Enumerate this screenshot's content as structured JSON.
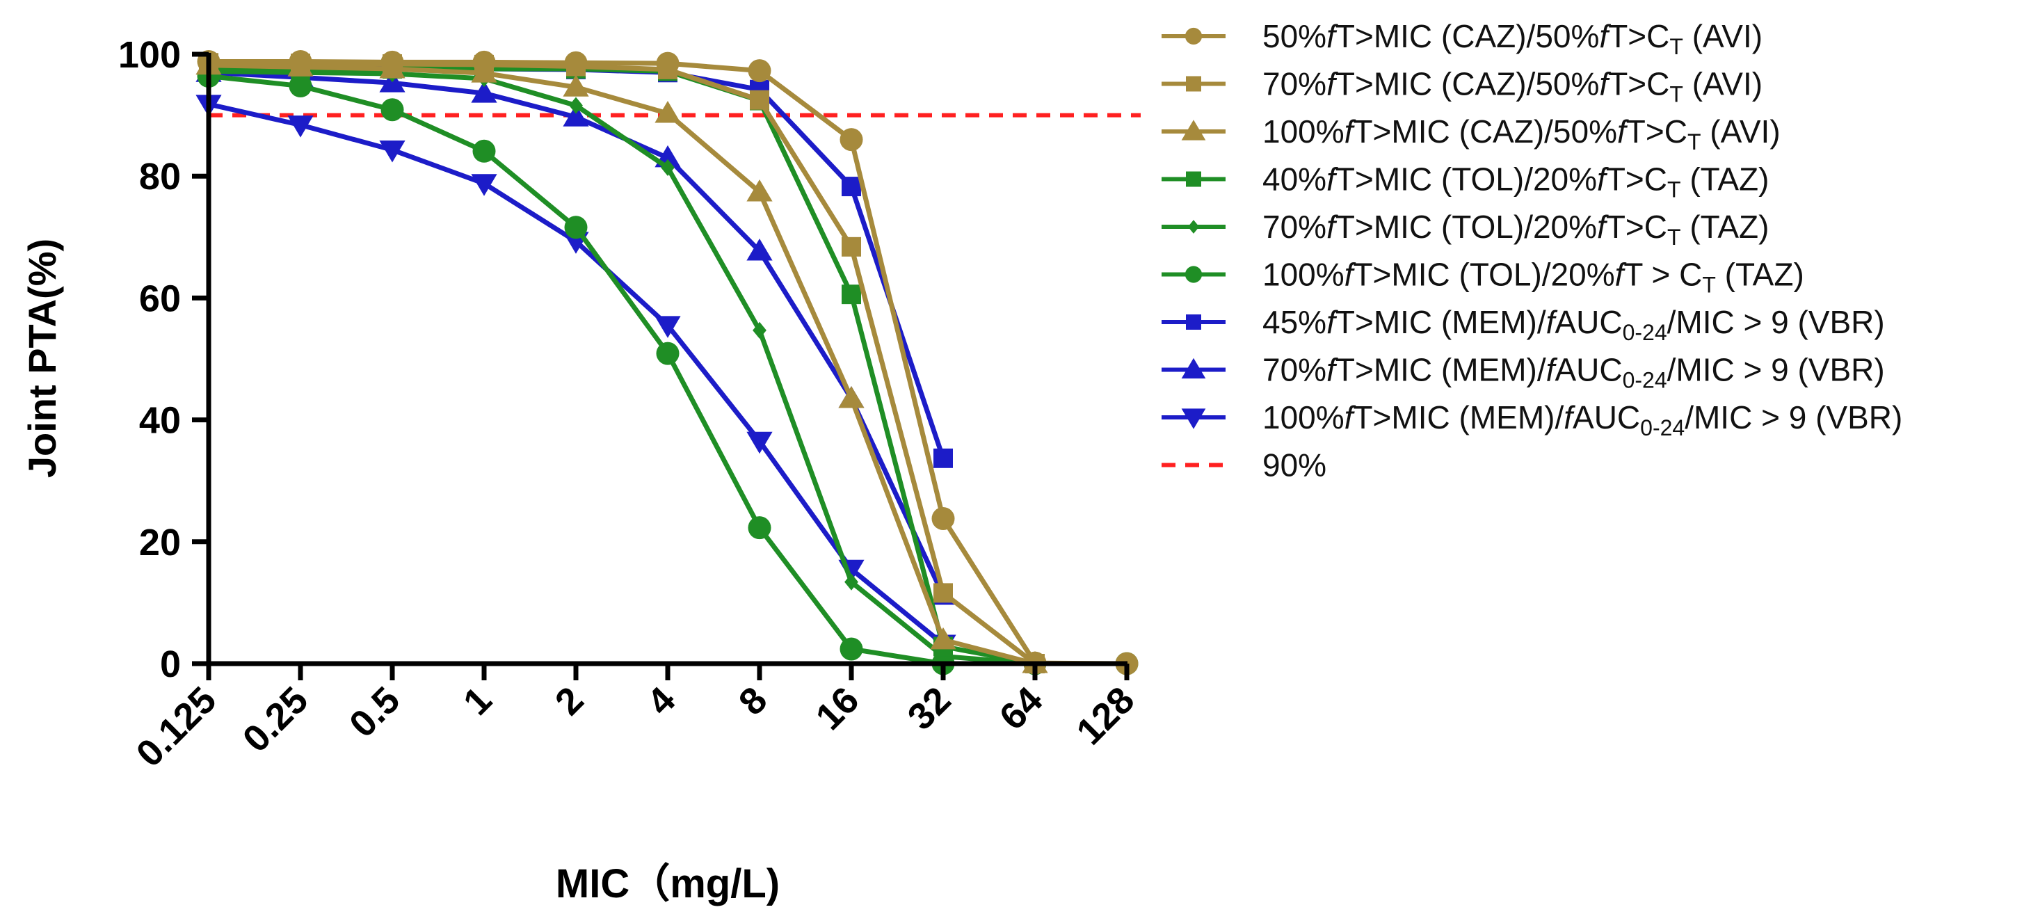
{
  "chart_data": {
    "type": "line",
    "xlabel": "MIC（mg/L)",
    "ylabel": "Joint PTA(%)",
    "ylim": [
      0,
      100
    ],
    "yticks": [
      0,
      20,
      40,
      60,
      80,
      100
    ],
    "grid": false,
    "legend_position": "right",
    "categories": [
      "0.125",
      "0.25",
      "0.5",
      "1",
      "2",
      "4",
      "8",
      "16",
      "32",
      "64",
      "128"
    ],
    "reference_line": {
      "name": "90%",
      "value": 90,
      "color": "#ff2020",
      "style": "dashed"
    },
    "series": [
      {
        "name": "50%fT>MIC (CAZ)/50%fT>CT (AVI)",
        "legend_parts": [
          {
            "t": "50%"
          },
          {
            "t": "f",
            "s": "i"
          },
          {
            "t": "T>MIC (CAZ)/50%"
          },
          {
            "t": "f",
            "s": "i"
          },
          {
            "t": "T>C"
          },
          {
            "t": "T",
            "s": "sub"
          },
          {
            "t": " (AVI)"
          }
        ],
        "color": "#a68a3c",
        "marker": "circle",
        "values": [
          98.8,
          98.8,
          98.7,
          98.7,
          98.6,
          98.5,
          97.3,
          86.0,
          23.8,
          0.1,
          0.0
        ]
      },
      {
        "name": "70%fT>MIC (CAZ)/50%fT>CT (AVI)",
        "legend_parts": [
          {
            "t": "70%"
          },
          {
            "t": "f",
            "s": "i"
          },
          {
            "t": "T>MIC (CAZ)/50%"
          },
          {
            "t": "f",
            "s": "i"
          },
          {
            "t": "T>C"
          },
          {
            "t": "T",
            "s": "sub"
          },
          {
            "t": " (AVI)"
          }
        ],
        "color": "#a68a3c",
        "marker": "square",
        "values": [
          98.6,
          98.5,
          98.4,
          98.3,
          98.0,
          97.5,
          92.5,
          68.4,
          11.6,
          0.0,
          null
        ]
      },
      {
        "name": "100%fT>MIC (CAZ)/50%fT>CT (AVI)",
        "legend_parts": [
          {
            "t": "100%"
          },
          {
            "t": "f",
            "s": "i"
          },
          {
            "t": "T>MIC (CAZ)/50%"
          },
          {
            "t": "f",
            "s": "i"
          },
          {
            "t": "T>C"
          },
          {
            "t": "T",
            "s": "sub"
          },
          {
            "t": " (AVI)"
          }
        ],
        "color": "#a68a3c",
        "marker": "triangle-up",
        "values": [
          98.2,
          97.9,
          97.6,
          96.9,
          94.6,
          90.3,
          77.4,
          43.5,
          3.9,
          0.0,
          null
        ]
      },
      {
        "name": "40%fT>MIC (TOL)/20%fT>CT (TAZ)",
        "legend_parts": [
          {
            "t": "40%"
          },
          {
            "t": "f",
            "s": "i"
          },
          {
            "t": "T>MIC (TOL)/20%"
          },
          {
            "t": "f",
            "s": "i"
          },
          {
            "t": "T>C"
          },
          {
            "t": "T",
            "s": "sub"
          },
          {
            "t": " (TAZ)"
          }
        ],
        "color": "#1f8e25",
        "marker": "square",
        "values": [
          97.6,
          97.6,
          97.6,
          97.6,
          97.6,
          97.2,
          92.4,
          60.6,
          2.8,
          0.0,
          null
        ]
      },
      {
        "name": "70%fT>MIC (TOL)/20%fT>CT (TAZ)",
        "legend_parts": [
          {
            "t": "70%"
          },
          {
            "t": "f",
            "s": "i"
          },
          {
            "t": "T>MIC (TOL)/20%"
          },
          {
            "t": "f",
            "s": "i"
          },
          {
            "t": "T>C"
          },
          {
            "t": "T",
            "s": "sub"
          },
          {
            "t": " (TAZ)"
          }
        ],
        "color": "#1f8e25",
        "marker": "diamond",
        "values": [
          97.2,
          97.0,
          96.8,
          96.0,
          91.6,
          81.4,
          54.7,
          13.4,
          1.2,
          0.0,
          null
        ]
      },
      {
        "name": "100%fT > MIC (TOL)/20%fT > CT (TAZ)",
        "legend_parts": [
          {
            "t": "100%"
          },
          {
            "t": "f",
            "s": "i"
          },
          {
            "t": "T>MIC (TOL)/20%"
          },
          {
            "t": "f",
            "s": "i"
          },
          {
            "t": "T > C"
          },
          {
            "t": "T",
            "s": "sub"
          },
          {
            "t": " (TAZ)"
          }
        ],
        "color": "#1f8e25",
        "marker": "circle",
        "values": [
          96.4,
          94.8,
          90.9,
          84.1,
          71.6,
          50.9,
          22.3,
          2.4,
          0.0,
          0.0,
          0.0
        ]
      },
      {
        "name": "45%fT>MIC (MEM)/fAUC0-24/MIC > 9 (VBR)",
        "legend_parts": [
          {
            "t": "45%"
          },
          {
            "t": "f",
            "s": "i"
          },
          {
            "t": "T>MIC (MEM)/"
          },
          {
            "t": "f",
            "s": "i"
          },
          {
            "t": "AUC"
          },
          {
            "t": "0-24",
            "s": "sub"
          },
          {
            "t": "/MIC > 9 (VBR)"
          }
        ],
        "color": "#1c1cc8",
        "marker": "square",
        "values": [
          97.9,
          97.8,
          97.7,
          97.6,
          97.5,
          97.0,
          94.2,
          78.3,
          33.7,
          null,
          null
        ]
      },
      {
        "name": "70%fT>MIC (MEM)/fAUC0-24/MIC > 9 (VBR)",
        "legend_parts": [
          {
            "t": "70%"
          },
          {
            "t": "f",
            "s": "i"
          },
          {
            "t": "T>MIC (MEM)/"
          },
          {
            "t": "f",
            "s": "i"
          },
          {
            "t": "AUC"
          },
          {
            "t": "0-24",
            "s": "sub"
          },
          {
            "t": "/MIC > 9 (VBR)"
          }
        ],
        "color": "#1c1cc8",
        "marker": "triangle-up",
        "values": [
          97.0,
          96.2,
          95.3,
          93.6,
          89.7,
          83.0,
          67.7,
          43.5,
          11.2,
          null,
          null
        ]
      },
      {
        "name": "100%fT>MIC (MEM)/fAUC0-24/MIC > 9 (VBR)",
        "legend_parts": [
          {
            "t": "100%"
          },
          {
            "t": "f",
            "s": "i"
          },
          {
            "t": "T>MIC (MEM)/"
          },
          {
            "t": "f",
            "s": "i"
          },
          {
            "t": "AUC"
          },
          {
            "t": "0-24",
            "s": "sub"
          },
          {
            "t": "/MIC > 9 (VBR)"
          }
        ],
        "color": "#1c1cc8",
        "marker": "triangle-down",
        "values": [
          91.8,
          88.4,
          84.3,
          78.8,
          69.3,
          55.5,
          36.5,
          15.5,
          3.2,
          null,
          null
        ]
      }
    ]
  }
}
